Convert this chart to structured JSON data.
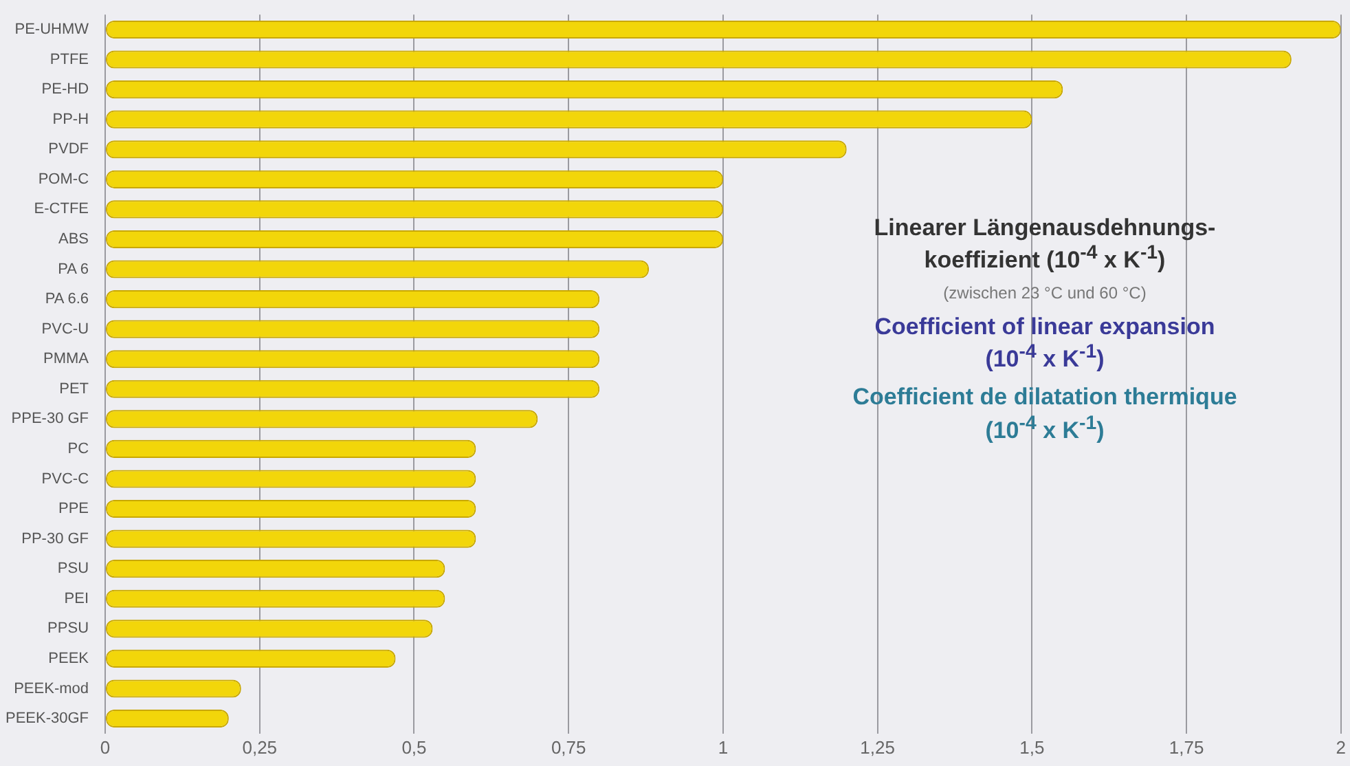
{
  "chart_data": {
    "type": "bar",
    "orientation": "horizontal",
    "categories": [
      "PE-UHMW",
      "PTFE",
      "PE-HD",
      "PP-H",
      "PVDF",
      "POM-C",
      "E-CTFE",
      "ABS",
      "PA 6",
      "PA 6.6",
      "PVC-U",
      "PMMA",
      "PET",
      "PPE-30 GF",
      "PC",
      "PVC-C",
      "PPE",
      "PP-30 GF",
      "PSU",
      "PEI",
      "PPSU",
      "PEEK",
      "PEEK-mod",
      "PEEK-30GF"
    ],
    "values": [
      2.0,
      1.92,
      1.55,
      1.5,
      1.2,
      1.0,
      1.0,
      1.0,
      0.88,
      0.8,
      0.8,
      0.8,
      0.8,
      0.7,
      0.6,
      0.6,
      0.6,
      0.6,
      0.55,
      0.55,
      0.53,
      0.47,
      0.22,
      0.2
    ],
    "color": "#f2d60a",
    "xlim": [
      0,
      2
    ],
    "xticks": [
      0,
      {
        "value": 0.25,
        "label": "0,25"
      },
      {
        "value": 0.5,
        "label": "0,5"
      },
      {
        "value": 0.75,
        "label": "0,75"
      },
      1,
      {
        "value": 1.25,
        "label": "1,25"
      },
      {
        "value": 1.5,
        "label": "1,5"
      },
      {
        "value": 1.75,
        "label": "1,75"
      },
      2
    ],
    "grid": "x",
    "annotations": [
      "Linearer Längenausdehnungs-\nkoeffizient (10$^{-4}$ x K$^{-1}$)",
      "(zwischen 23 °C und 60 °C)",
      "Coefficient of linear expansion\n(10$^{-4}$ x K$^{-1}$)",
      "Coefficient de dilatation thermique\n(10$^{-4}$ x K$^{-1}$)"
    ]
  }
}
